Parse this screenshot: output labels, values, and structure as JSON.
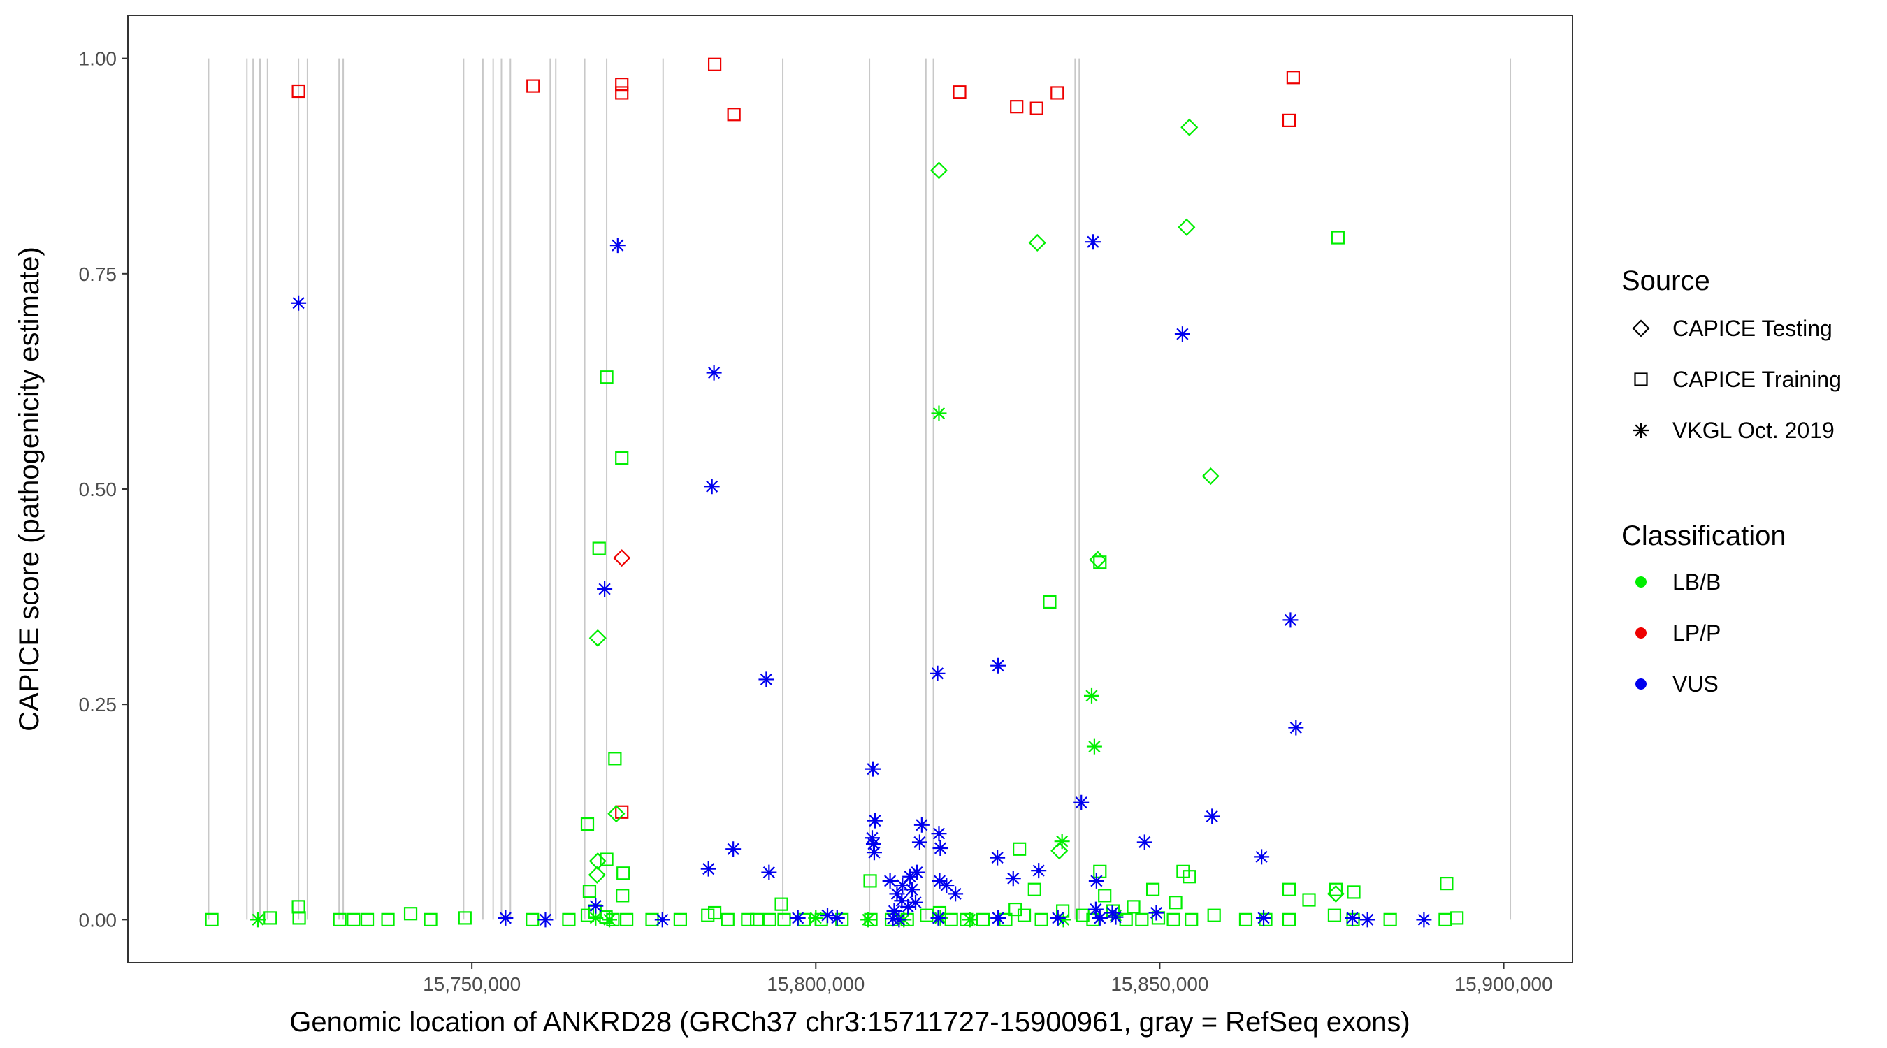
{
  "chart_data": {
    "type": "scatter",
    "title": "",
    "xlabel": "Genomic location of ANKRD28 (GRCh37 chr3:15711727-15900961, gray = RefSeq exons)",
    "ylabel": "CAPICE score (pathogenicity estimate)",
    "xlim": [
      15700000,
      15910000
    ],
    "ylim": [
      -0.05,
      1.05
    ],
    "x_ticks": [
      15750000,
      15800000,
      15850000,
      15900000
    ],
    "x_tick_labels": [
      "15,750,000",
      "15,800,000",
      "15,850,000",
      "15,900,000"
    ],
    "y_ticks": [
      0,
      0.25,
      0.5,
      0.75,
      1
    ],
    "y_tick_labels": [
      "0.00",
      "0.25",
      "0.50",
      "0.75",
      "1.00"
    ],
    "exons": [
      15711727,
      15717300,
      15718200,
      15719200,
      15720300,
      15724800,
      15726100,
      15730700,
      15731300,
      15748800,
      15751600,
      15753100,
      15754300,
      15755600,
      15761400,
      15762200,
      15766400,
      15769600,
      15777800,
      15795200,
      15807800,
      15816000,
      15817100,
      15837700,
      15838300,
      15900961
    ],
    "legend": {
      "source_title": "Source",
      "source_items": [
        {
          "label": "CAPICE Testing",
          "shape": "diamond"
        },
        {
          "label": "CAPICE Training",
          "shape": "square"
        },
        {
          "label": "VKGL Oct. 2019",
          "shape": "asterisk"
        }
      ],
      "class_title": "Classification",
      "class_items": [
        {
          "label": "LB/B",
          "color": "#00ee00"
        },
        {
          "label": "LP/P",
          "color": "#ee0000"
        },
        {
          "label": "VUS",
          "color": "#0000ee"
        }
      ]
    },
    "series": [
      {
        "name": "CAPICE Training LP/P",
        "shape": "square",
        "color": "#ee0000",
        "points": [
          [
            15724800,
            0.962
          ],
          [
            15758900,
            0.968
          ],
          [
            15771800,
            0.96
          ],
          [
            15771800,
            0.97
          ],
          [
            15785300,
            0.993
          ],
          [
            15788100,
            0.935
          ],
          [
            15820900,
            0.961
          ],
          [
            15829200,
            0.944
          ],
          [
            15832100,
            0.942
          ],
          [
            15835100,
            0.96
          ],
          [
            15868800,
            0.928
          ],
          [
            15869400,
            0.978
          ],
          [
            15771800,
            0.125
          ]
        ]
      },
      {
        "name": "CAPICE Testing LP/P",
        "shape": "diamond",
        "color": "#ee0000",
        "points": [
          [
            15771800,
            0.42
          ]
        ]
      },
      {
        "name": "CAPICE Testing LB/B",
        "shape": "diamond",
        "color": "#00ee00",
        "points": [
          [
            15817900,
            0.87
          ],
          [
            15854300,
            0.92
          ],
          [
            15853900,
            0.804
          ],
          [
            15832200,
            0.786
          ],
          [
            15857400,
            0.515
          ],
          [
            15841000,
            0.418
          ],
          [
            15768300,
            0.327
          ],
          [
            15771000,
            0.123
          ],
          [
            15835400,
            0.08
          ],
          [
            15768300,
            0.068
          ],
          [
            15768200,
            0.052
          ],
          [
            15875600,
            0.03
          ]
        ]
      },
      {
        "name": "CAPICE Training LB/B",
        "shape": "square",
        "color": "#00ee00",
        "points": [
          [
            15875900,
            0.792
          ],
          [
            15769600,
            0.63
          ],
          [
            15771800,
            0.536
          ],
          [
            15768500,
            0.431
          ],
          [
            15834000,
            0.369
          ],
          [
            15841300,
            0.415
          ],
          [
            15770800,
            0.187
          ],
          [
            15766800,
            0.111
          ],
          [
            15772000,
            0.054
          ],
          [
            15769600,
            0.07
          ],
          [
            15807900,
            0.045
          ],
          [
            15829600,
            0.082
          ],
          [
            15841300,
            0.056
          ],
          [
            15853400,
            0.056
          ],
          [
            15854300,
            0.05
          ],
          [
            15891700,
            0.042
          ],
          [
            15868800,
            0.035
          ],
          [
            15875600,
            0.035
          ],
          [
            15878200,
            0.032
          ],
          [
            15871700,
            0.023
          ],
          [
            15849000,
            0.035
          ],
          [
            15795000,
            0.018
          ],
          [
            15724800,
            0.015
          ],
          [
            15741100,
            0.007
          ],
          [
            15842000,
            0.028
          ],
          [
            15767100,
            0.033
          ],
          [
            15771900,
            0.028
          ],
          [
            15831800,
            0.035
          ],
          [
            15712200,
            0
          ],
          [
            15720700,
            0.002
          ],
          [
            15724900,
            0.002
          ],
          [
            15730800,
            0
          ],
          [
            15732800,
            0
          ],
          [
            15734800,
            0
          ],
          [
            15737800,
            0
          ],
          [
            15744000,
            0
          ],
          [
            15749000,
            0.002
          ],
          [
            15758800,
            0
          ],
          [
            15764100,
            0
          ],
          [
            15766800,
            0.005
          ],
          [
            15767900,
            0.01
          ],
          [
            15769500,
            0.003
          ],
          [
            15770500,
            0
          ],
          [
            15772500,
            0
          ],
          [
            15776200,
            0
          ],
          [
            15780300,
            0
          ],
          [
            15784300,
            0.005
          ],
          [
            15785300,
            0.008
          ],
          [
            15787200,
            0
          ],
          [
            15790100,
            0
          ],
          [
            15791400,
            0
          ],
          [
            15793300,
            0
          ],
          [
            15795400,
            0
          ],
          [
            15798300,
            0
          ],
          [
            15800800,
            0
          ],
          [
            15803800,
            0
          ],
          [
            15808000,
            0
          ],
          [
            15811000,
            0
          ],
          [
            15813300,
            0
          ],
          [
            15816100,
            0.005
          ],
          [
            15818000,
            0.008
          ],
          [
            15819700,
            0
          ],
          [
            15821900,
            0
          ],
          [
            15824300,
            0
          ],
          [
            15827600,
            0
          ],
          [
            15829000,
            0.012
          ],
          [
            15830300,
            0.005
          ],
          [
            15832800,
            0
          ],
          [
            15835900,
            0.01
          ],
          [
            15838800,
            0.005
          ],
          [
            15840300,
            0
          ],
          [
            15843200,
            0.01
          ],
          [
            15845100,
            0
          ],
          [
            15847400,
            0
          ],
          [
            15849800,
            0.002
          ],
          [
            15852000,
            0
          ],
          [
            15854600,
            0
          ],
          [
            15857900,
            0.005
          ],
          [
            15862500,
            0
          ],
          [
            15865400,
            0
          ],
          [
            15868800,
            0
          ],
          [
            15875400,
            0.005
          ],
          [
            15878100,
            0
          ],
          [
            15883500,
            0
          ],
          [
            15891500,
            0
          ],
          [
            15893200,
            0.002
          ],
          [
            15846200,
            0.015
          ],
          [
            15852300,
            0.02
          ]
        ]
      },
      {
        "name": "VKGL Oct. 2019 LB/B",
        "shape": "asterisk",
        "color": "#00ee00",
        "points": [
          [
            15817900,
            0.588
          ],
          [
            15840100,
            0.26
          ],
          [
            15840500,
            0.201
          ],
          [
            15835800,
            0.091
          ],
          [
            15718900,
            0
          ],
          [
            15768000,
            0.002
          ],
          [
            15770000,
            0
          ],
          [
            15800000,
            0.002
          ],
          [
            15807600,
            0
          ],
          [
            15812800,
            0
          ],
          [
            15822400,
            0
          ],
          [
            15836000,
            0
          ],
          [
            15843600,
            0.005
          ],
          [
            15818100,
            0.002
          ]
        ]
      },
      {
        "name": "VKGL Oct. 2019 VUS",
        "shape": "asterisk",
        "color": "#0000ee",
        "points": [
          [
            15724800,
            0.716
          ],
          [
            15771200,
            0.783
          ],
          [
            15785200,
            0.635
          ],
          [
            15784900,
            0.503
          ],
          [
            15769300,
            0.384
          ],
          [
            15792800,
            0.279
          ],
          [
            15817700,
            0.286
          ],
          [
            15826500,
            0.295
          ],
          [
            15840300,
            0.787
          ],
          [
            15853300,
            0.68
          ],
          [
            15869000,
            0.348
          ],
          [
            15869800,
            0.223
          ],
          [
            15838600,
            0.136
          ],
          [
            15808300,
            0.175
          ],
          [
            15808600,
            0.115
          ],
          [
            15808200,
            0.095
          ],
          [
            15808400,
            0.088
          ],
          [
            15808500,
            0.078
          ],
          [
            15815400,
            0.11
          ],
          [
            15815100,
            0.09
          ],
          [
            15817900,
            0.1
          ],
          [
            15818100,
            0.083
          ],
          [
            15857600,
            0.12
          ],
          [
            15847800,
            0.09
          ],
          [
            15864800,
            0.073
          ],
          [
            15788000,
            0.082
          ],
          [
            15784400,
            0.059
          ],
          [
            15793200,
            0.055
          ],
          [
            15826400,
            0.072
          ],
          [
            15832400,
            0.057
          ],
          [
            15828700,
            0.048
          ],
          [
            15820300,
            0.03
          ],
          [
            15840800,
            0.045
          ],
          [
            15810800,
            0.045
          ],
          [
            15813700,
            0.05
          ],
          [
            15814700,
            0.055
          ],
          [
            15812600,
            0.04
          ],
          [
            15814000,
            0.035
          ],
          [
            15811800,
            0.03
          ],
          [
            15812500,
            0.022
          ],
          [
            15814500,
            0.02
          ],
          [
            15813400,
            0.015
          ],
          [
            15811400,
            0.01
          ],
          [
            15818000,
            0.045
          ],
          [
            15819000,
            0.04
          ],
          [
            15768000,
            0.016
          ],
          [
            15754900,
            0.002
          ],
          [
            15760700,
            0
          ],
          [
            15777700,
            0
          ],
          [
            15797400,
            0.002
          ],
          [
            15801700,
            0.005
          ],
          [
            15803100,
            0.002
          ],
          [
            15812100,
            0
          ],
          [
            15817800,
            0.002
          ],
          [
            15826500,
            0.002
          ],
          [
            15835200,
            0.002
          ],
          [
            15840700,
            0.012
          ],
          [
            15843100,
            0.008
          ],
          [
            15849500,
            0.008
          ],
          [
            15865100,
            0.002
          ],
          [
            15878000,
            0.002
          ],
          [
            15880200,
            0
          ],
          [
            15888400,
            0
          ],
          [
            15841300,
            0.002
          ],
          [
            15843600,
            0.003
          ],
          [
            15811200,
            0.001
          ]
        ]
      }
    ]
  }
}
